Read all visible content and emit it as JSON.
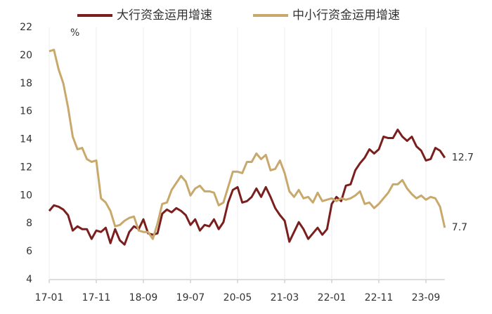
{
  "chart_data": {
    "type": "line",
    "unit": "%",
    "categories": [
      "17-01",
      null,
      null,
      null,
      null,
      null,
      null,
      null,
      null,
      null,
      "17-11",
      null,
      null,
      null,
      null,
      null,
      null,
      null,
      null,
      null,
      "18-09",
      null,
      null,
      null,
      null,
      null,
      null,
      null,
      null,
      null,
      "19-07",
      null,
      null,
      null,
      null,
      null,
      null,
      null,
      null,
      null,
      "20-05",
      null,
      null,
      null,
      null,
      null,
      null,
      null,
      null,
      null,
      "21-03",
      null,
      null,
      null,
      null,
      null,
      null,
      null,
      null,
      null,
      "22-01",
      null,
      null,
      null,
      null,
      null,
      null,
      null,
      null,
      null,
      "22-11",
      null,
      null,
      null,
      null,
      null,
      null,
      null,
      null,
      null,
      "23-09",
      null,
      null,
      null,
      null
    ],
    "series": [
      {
        "name": "大行资金运用增速",
        "color": "#7b1e1e",
        "values": [
          8.9,
          9.3,
          9.2,
          9.0,
          8.6,
          7.5,
          7.8,
          7.6,
          7.6,
          6.9,
          7.5,
          7.4,
          7.7,
          6.6,
          7.6,
          6.8,
          6.5,
          7.4,
          7.8,
          7.6,
          8.3,
          7.3,
          7.2,
          7.3,
          8.7,
          9.0,
          8.8,
          9.1,
          8.9,
          8.6,
          7.9,
          8.3,
          7.5,
          7.9,
          7.8,
          8.3,
          7.6,
          8.1,
          9.5,
          10.4,
          10.6,
          9.5,
          9.6,
          9.9,
          10.5,
          9.9,
          10.6,
          9.9,
          9.1,
          8.6,
          8.2,
          6.7,
          7.4,
          8.1,
          7.6,
          6.9,
          7.3,
          7.7,
          7.2,
          7.6,
          9.4,
          9.9,
          9.6,
          10.7,
          10.8,
          11.8,
          12.3,
          12.7,
          13.3,
          13.0,
          13.3,
          14.2,
          14.1,
          14.1,
          14.7,
          14.2,
          13.9,
          14.2,
          13.5,
          13.2,
          12.5,
          12.6,
          13.4,
          13.2,
          12.7
        ]
      },
      {
        "name": "中小行资金运用增速",
        "color": "#c9a96b",
        "values": [
          20.3,
          20.4,
          19.0,
          18.0,
          16.3,
          14.2,
          13.3,
          13.4,
          12.6,
          12.4,
          12.5,
          9.8,
          9.5,
          8.9,
          7.8,
          7.9,
          8.2,
          8.4,
          8.5,
          7.5,
          7.4,
          7.4,
          6.9,
          8.0,
          9.4,
          9.5,
          10.4,
          10.9,
          11.4,
          11.0,
          10.0,
          10.5,
          10.7,
          10.3,
          10.3,
          10.2,
          9.3,
          9.5,
          10.6,
          11.7,
          11.7,
          11.6,
          12.4,
          12.4,
          13.0,
          12.6,
          12.9,
          11.8,
          11.9,
          12.5,
          11.6,
          10.3,
          9.9,
          10.4,
          9.8,
          9.9,
          9.5,
          10.2,
          9.6,
          9.7,
          9.8,
          9.6,
          9.8,
          9.7,
          9.8,
          10.0,
          10.3,
          9.4,
          9.5,
          9.1,
          9.4,
          9.8,
          10.2,
          10.8,
          10.8,
          11.1,
          10.5,
          10.1,
          9.8,
          10.0,
          9.7,
          9.9,
          9.8,
          9.2,
          7.7
        ]
      }
    ],
    "ylim": [
      4,
      22
    ],
    "yticks": [
      4,
      6,
      8,
      10,
      12,
      14,
      16,
      18,
      20,
      22
    ],
    "grid": "x",
    "legend": "top"
  }
}
